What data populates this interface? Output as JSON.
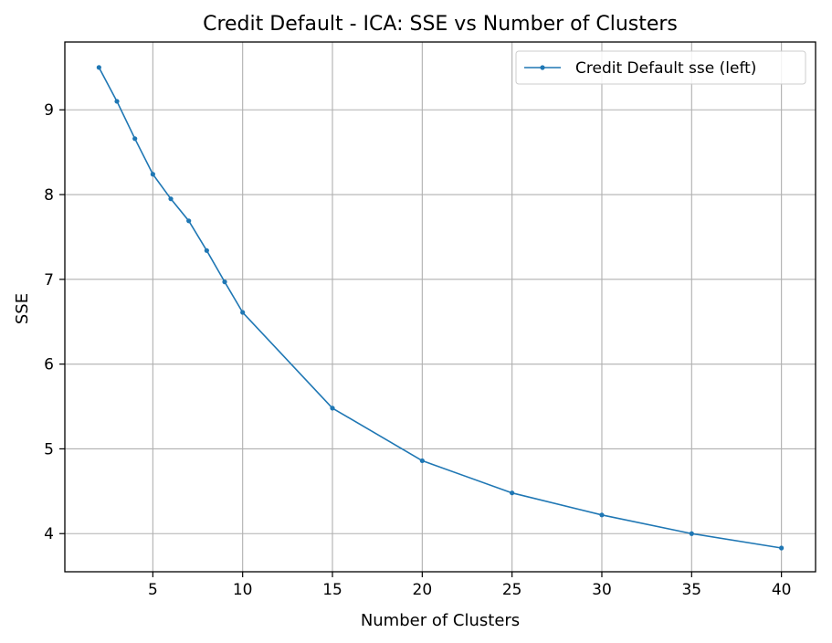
{
  "chart_data": {
    "type": "line",
    "title": "Credit Default - ICA: SSE vs Number of Clusters",
    "xlabel": "Number of Clusters",
    "ylabel": "SSE",
    "xlim": [
      0.1,
      41.9
    ],
    "ylim": [
      3.55,
      9.8
    ],
    "xticks": [
      5,
      10,
      15,
      20,
      25,
      30,
      35,
      40
    ],
    "yticks": [
      4,
      5,
      6,
      7,
      8,
      9
    ],
    "grid": true,
    "legend_position": "top-right",
    "series": [
      {
        "name": "Credit Default sse (left)",
        "color": "#1f77b4",
        "marker": "circle",
        "x": [
          2,
          3,
          4,
          5,
          6,
          7,
          8,
          9,
          10,
          15,
          20,
          25,
          30,
          35,
          40
        ],
        "y": [
          9.5,
          9.1,
          8.66,
          8.24,
          7.95,
          7.69,
          7.34,
          6.97,
          6.61,
          5.48,
          4.86,
          4.48,
          4.22,
          4.0,
          3.83
        ]
      }
    ]
  }
}
